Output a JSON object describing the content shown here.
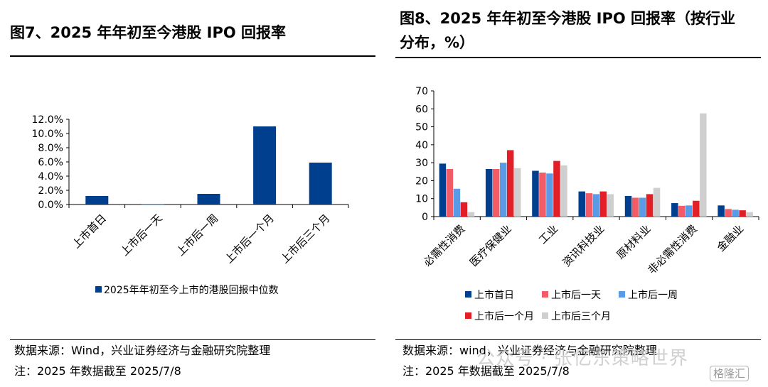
{
  "left": {
    "title": "图7、2025 年年初至今港股 IPO 回报率",
    "source": "数据来源：Wind，兴业证券经济与金融研究院整理",
    "note": "注：2025 年数据截至 2025/7/8"
  },
  "right": {
    "title_line1": "图8、2025 年年初至今港股 IPO 回报率（按行业",
    "title_line2": "分布，%）",
    "source": "数据来源：wind，兴业证券经济与金融研究院整理",
    "note": "注：2025 年数据截至 2025/7/8"
  },
  "watermark": "公众号 · 张忆东策略世界",
  "logo": "格隆汇",
  "colors": {
    "navy": "#003F8E",
    "salmon": "#F25C66",
    "lightblue": "#5B9BE6",
    "red": "#E21F26",
    "gray": "#CFCFCF"
  },
  "chart_data": [
    {
      "type": "bar",
      "title": "",
      "categories": [
        "上市首日",
        "上市后一天",
        "上市后一周",
        "上市后一个月",
        "上市后三个月"
      ],
      "series": [
        {
          "name": "2025年年初至今上市的港股回报中位数",
          "values": [
            1.2,
            0.05,
            1.5,
            11.0,
            5.9
          ]
        }
      ],
      "yticks": [
        "0.0%",
        "2.0%",
        "4.0%",
        "6.0%",
        "8.0%",
        "10.0%",
        "12.0%"
      ],
      "ylim": [
        0,
        12
      ],
      "grid": false,
      "legend": "bottom"
    },
    {
      "type": "bar",
      "title": "",
      "categories": [
        "必需性消费",
        "医疗保健业",
        "工业",
        "资讯科技业",
        "原材料业",
        "非必需性消费",
        "金融业"
      ],
      "series": [
        {
          "name": "上市首日",
          "values": [
            29.5,
            26.5,
            25.5,
            14.0,
            11.5,
            7.5,
            6.2
          ]
        },
        {
          "name": "上市后一天",
          "values": [
            26.5,
            26.5,
            24.5,
            13.0,
            10.5,
            6.0,
            4.2
          ]
        },
        {
          "name": "上市后一周",
          "values": [
            15.5,
            30.0,
            24.0,
            12.5,
            10.5,
            6.2,
            3.8
          ]
        },
        {
          "name": "上市后一个月",
          "values": [
            8.0,
            37.0,
            31.0,
            14.0,
            12.5,
            8.8,
            3.5
          ]
        },
        {
          "name": "上市后三个月",
          "values": [
            2.5,
            27.0,
            28.5,
            12.5,
            16.0,
            57.5,
            2.5
          ]
        }
      ],
      "yticks": [
        "0",
        "10",
        "20",
        "30",
        "40",
        "50",
        "60",
        "70"
      ],
      "ylim": [
        0,
        70
      ],
      "grid": false,
      "legend": "bottom"
    }
  ]
}
